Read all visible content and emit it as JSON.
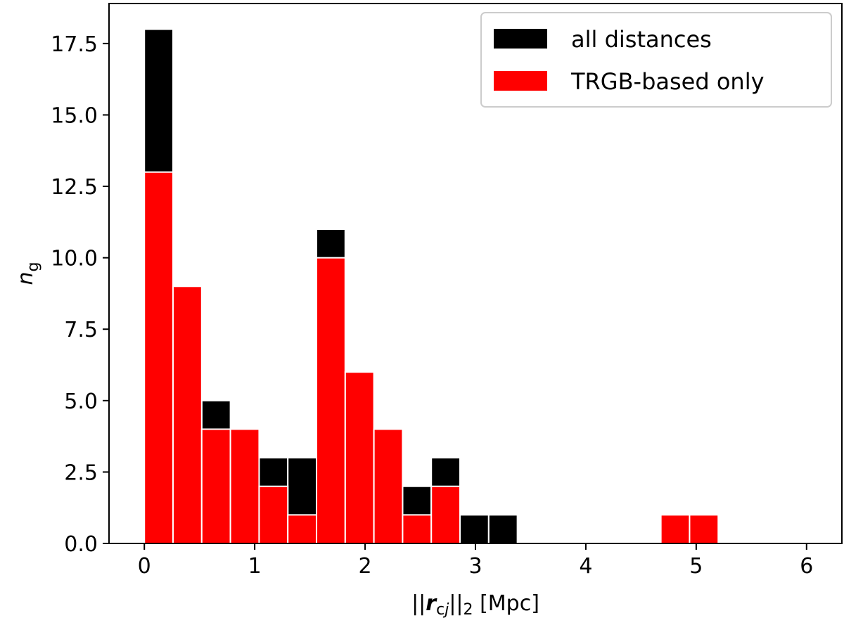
{
  "chart_data": {
    "type": "bar",
    "subtype": "overlaid-histogram",
    "x_tick_labels": [
      "0",
      "1",
      "2",
      "3",
      "4",
      "5",
      "6"
    ],
    "y_tick_labels": [
      "0.0",
      "2.5",
      "5.0",
      "7.5",
      "10.0",
      "12.5",
      "15.0",
      "17.5"
    ],
    "xlim": [
      -0.32,
      6.32
    ],
    "ylim": [
      0,
      18.9
    ],
    "x_ticks": [
      0,
      1,
      2,
      3,
      4,
      5,
      6
    ],
    "y_ticks": [
      0,
      2.5,
      5.0,
      7.5,
      10.0,
      12.5,
      15.0,
      17.5
    ],
    "xlabel": {
      "prefix": "||",
      "vector": "r",
      "subscript": "c",
      "subscript_italic": "j",
      "middle": "||",
      "norm_sub": "2",
      "suffix": " [Mpc]"
    },
    "ylabel": {
      "base": "n",
      "subscript": "g"
    },
    "bin_edges": [
      0.0,
      0.26,
      0.52,
      0.78,
      1.04,
      1.3,
      1.56,
      1.82,
      2.08,
      2.34,
      2.6,
      2.86,
      3.12,
      3.38,
      3.64,
      3.9,
      4.16,
      4.42,
      4.68,
      4.94,
      5.2
    ],
    "series": [
      {
        "name": "all distances",
        "color": "#000000",
        "values": [
          18,
          0,
          5,
          0,
          3,
          3,
          11,
          0,
          0,
          2,
          3,
          1,
          1,
          0,
          0,
          0,
          0,
          0,
          0,
          0
        ]
      },
      {
        "name": "TRGB-based only",
        "color": "#ff0000",
        "values": [
          13,
          9,
          4,
          4,
          2,
          1,
          10,
          6,
          4,
          1,
          2,
          0,
          0,
          0,
          0,
          0,
          0,
          0,
          1,
          1
        ]
      }
    ],
    "bar_edgecolor": "#ffffff",
    "grid": false,
    "legend": {
      "placement": "top-right"
    }
  }
}
